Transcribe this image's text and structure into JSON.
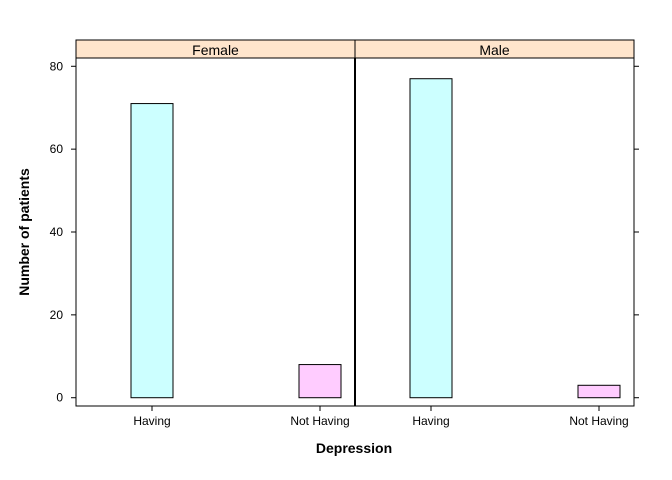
{
  "chart_data": {
    "type": "bar",
    "xlabel": "Depression",
    "ylabel": "Number of patients",
    "categories": [
      "Having",
      "Not Having"
    ],
    "panels": [
      {
        "name": "Female",
        "values": [
          71,
          8
        ]
      },
      {
        "name": "Male",
        "values": [
          77,
          3
        ]
      }
    ],
    "ylim": [
      -2,
      82
    ],
    "yticks": [
      0,
      20,
      40,
      60,
      80
    ],
    "grid": false,
    "colors": {
      "bars": [
        "#ccffff",
        "#ffccff"
      ],
      "strip": "#ffe5cc"
    }
  }
}
